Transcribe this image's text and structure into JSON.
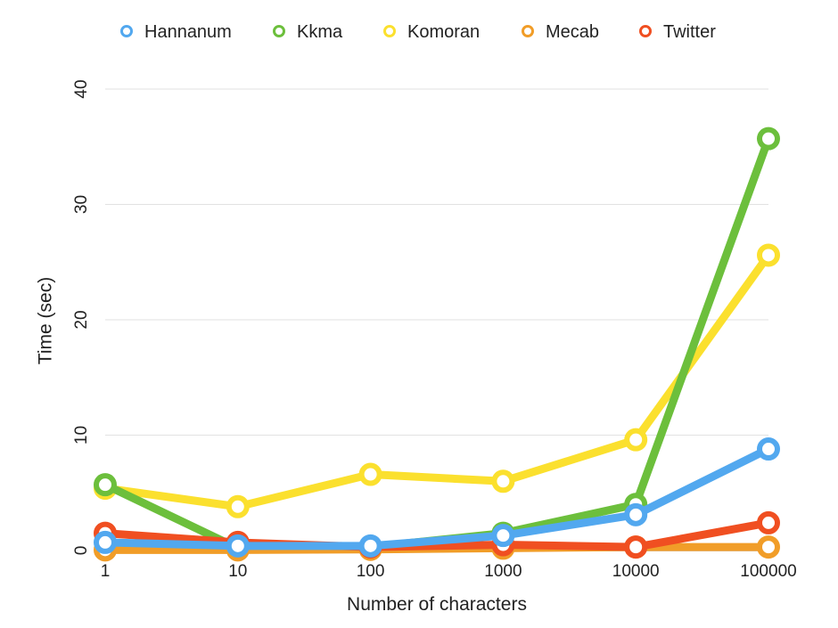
{
  "chart_data": {
    "type": "line",
    "title": "",
    "xlabel": "Number of characters",
    "ylabel": "Time (sec)",
    "x": [
      "1",
      "10",
      "100",
      "1000",
      "10000",
      "100000"
    ],
    "yticks": [
      "0",
      "10",
      "20",
      "30",
      "40"
    ],
    "ylim": [
      0,
      40
    ],
    "grid": true,
    "legend_position": "top",
    "series": [
      {
        "name": "Hannanum",
        "color": "#52a8ef",
        "values": [
          0.7,
          0.4,
          0.4,
          1.3,
          3.1,
          8.8
        ]
      },
      {
        "name": "Kkma",
        "color": "#6cbf3c",
        "values": [
          5.7,
          0.2,
          0.3,
          1.5,
          4.0,
          35.7
        ]
      },
      {
        "name": "Komoran",
        "color": "#fbe02e",
        "values": [
          5.4,
          3.8,
          6.6,
          6.0,
          9.6,
          25.6
        ]
      },
      {
        "name": "Mecab",
        "color": "#f19d28",
        "values": [
          0.05,
          0.05,
          0.1,
          0.2,
          0.3,
          0.3
        ]
      },
      {
        "name": "Twitter",
        "color": "#f04f21",
        "values": [
          1.5,
          0.7,
          0.3,
          0.5,
          0.3,
          2.4
        ]
      }
    ],
    "draw_order": [
      "Komoran",
      "Kkma",
      "Mecab",
      "Twitter",
      "Hannanum"
    ]
  }
}
